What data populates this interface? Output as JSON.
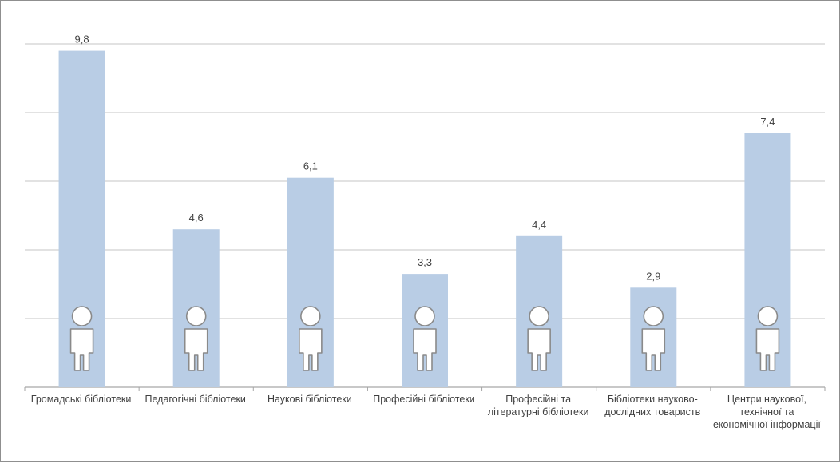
{
  "chart_data": {
    "type": "bar",
    "categories": [
      "Громадські бібліотеки",
      "Педагогічні бібліотеки",
      "Наукові бібліотеки",
      "Професійні бібліотеки",
      "Професійні та літературні бібліотеки",
      "Бібліотеки науково-дослідних товариств",
      "Центри наукової, технічної та економічної інформації"
    ],
    "values": [
      9.8,
      4.6,
      6.1,
      3.3,
      4.4,
      2.9,
      7.4
    ],
    "value_labels": [
      "9,8",
      "4,6",
      "6,1",
      "3,3",
      "4,4",
      "2,9",
      "7,4"
    ],
    "ylim": [
      0,
      10
    ],
    "grid": true,
    "bar_color": "#b9cde5",
    "icon": "person-icon"
  }
}
